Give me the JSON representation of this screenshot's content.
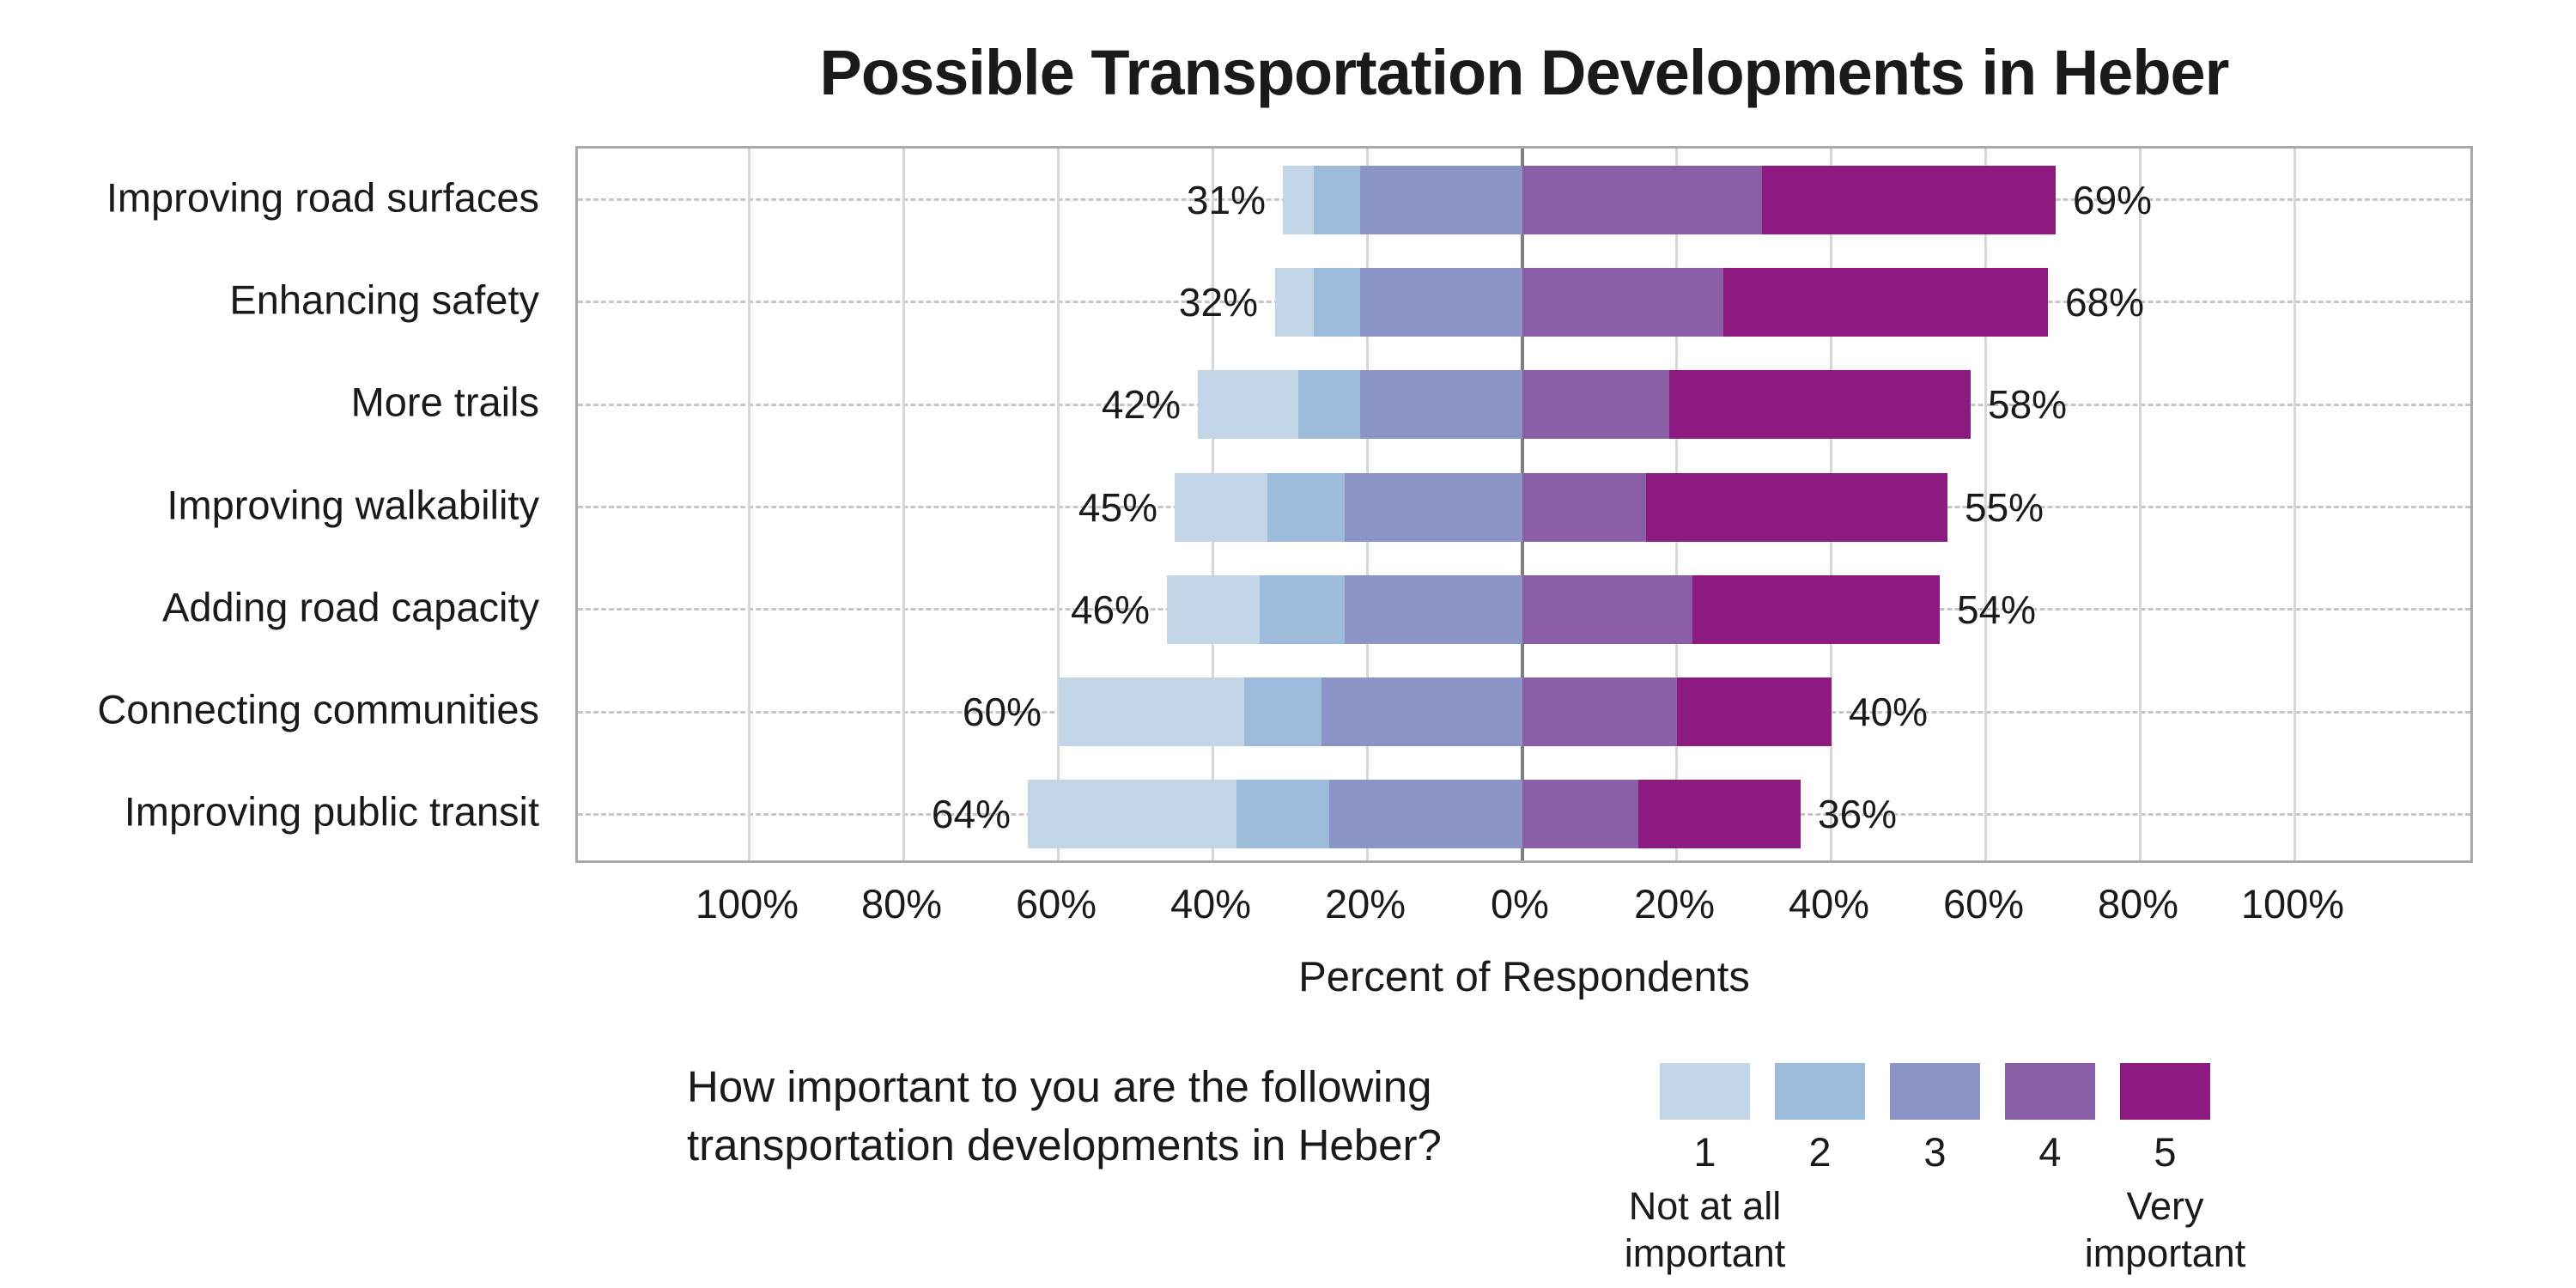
{
  "chart_data": {
    "type": "bar",
    "variant": "diverging_stacked_likert",
    "title": "Possible Transportation Developments in Heber",
    "xlabel": "Percent of Respondents",
    "x_ticks": [
      "100%",
      "80%",
      "60%",
      "40%",
      "20%",
      "0%",
      "20%",
      "40%",
      "60%",
      "80%",
      "100%"
    ],
    "x_tick_values": [
      -100,
      -80,
      -60,
      -40,
      -20,
      0,
      20,
      40,
      60,
      80,
      100
    ],
    "axis_range": [
      -122,
      123
    ],
    "grid": true,
    "categories": [
      "Improving road surfaces",
      "Enhancing safety",
      "More trails",
      "Improving walkability",
      "Adding road capacity",
      "Connecting communities",
      "Improving public transit"
    ],
    "left_total_labels": [
      "31%",
      "32%",
      "42%",
      "45%",
      "46%",
      "60%",
      "64%"
    ],
    "right_total_labels": [
      "69%",
      "68%",
      "58%",
      "55%",
      "54%",
      "40%",
      "36%"
    ],
    "left_totals": [
      31,
      32,
      42,
      45,
      46,
      60,
      64
    ],
    "right_totals": [
      69,
      68,
      58,
      55,
      54,
      40,
      36
    ],
    "segments": {
      "left_keys": [
        "1",
        "2",
        "3"
      ],
      "right_keys": [
        "4",
        "5"
      ],
      "values": [
        {
          "1": 4,
          "2": 6,
          "3": 21,
          "4": 31,
          "5": 38
        },
        {
          "1": 5,
          "2": 6,
          "3": 21,
          "4": 26,
          "5": 42
        },
        {
          "1": 13,
          "2": 8,
          "3": 21,
          "4": 19,
          "5": 39
        },
        {
          "1": 12,
          "2": 10,
          "3": 23,
          "4": 16,
          "5": 39
        },
        {
          "1": 12,
          "2": 11,
          "3": 23,
          "4": 22,
          "5": 32
        },
        {
          "1": 24,
          "2": 10,
          "3": 26,
          "4": 20,
          "5": 20
        },
        {
          "1": 27,
          "2": 12,
          "3": 25,
          "4": 15,
          "5": 21
        }
      ]
    },
    "colors": {
      "1": "#c3d6e8",
      "2": "#9dbbdb",
      "3": "#8b94c6",
      "4": "#8a5fa8",
      "5": "#8d1a80"
    },
    "legend": {
      "question_line1": "How important to you are the following",
      "question_line2": "transportation developments in Heber?",
      "items": [
        {
          "value": "1",
          "sublabel": "Not at all\nimportant"
        },
        {
          "value": "2",
          "sublabel": ""
        },
        {
          "value": "3",
          "sublabel": ""
        },
        {
          "value": "4",
          "sublabel": ""
        },
        {
          "value": "5",
          "sublabel": "Very\nimportant"
        }
      ]
    }
  }
}
